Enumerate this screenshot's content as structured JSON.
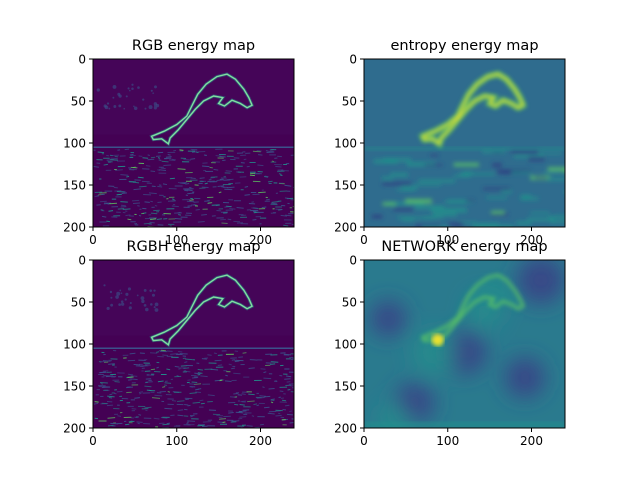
{
  "figure": {
    "background": "#ffffff",
    "colormap": "viridis",
    "colormap_stops": [
      "#440154",
      "#3b528b",
      "#21918c",
      "#5ec962",
      "#fde725"
    ]
  },
  "chart_data": [
    {
      "type": "heatmap",
      "title": "RGB energy map",
      "xticks": [
        "0",
        "100",
        "200"
      ],
      "yticks": [
        "0",
        "50",
        "100",
        "150",
        "200"
      ],
      "xlim": [
        0,
        240
      ],
      "ylim": [
        200,
        0
      ],
      "image_size": [
        240,
        200
      ],
      "style": "edge"
    },
    {
      "type": "heatmap",
      "title": "entropy energy map",
      "xticks": [
        "0",
        "100",
        "200"
      ],
      "yticks": [
        "0",
        "50",
        "100",
        "150",
        "200"
      ],
      "xlim": [
        0,
        240
      ],
      "ylim": [
        200,
        0
      ],
      "image_size": [
        240,
        200
      ],
      "style": "entropy"
    },
    {
      "type": "heatmap",
      "title": "RGBH energy map",
      "xticks": [
        "0",
        "100",
        "200"
      ],
      "yticks": [
        "0",
        "50",
        "100",
        "150",
        "200"
      ],
      "xlim": [
        0,
        240
      ],
      "ylim": [
        200,
        0
      ],
      "image_size": [
        240,
        200
      ],
      "style": "edge"
    },
    {
      "type": "heatmap",
      "title": "NETWORK energy map",
      "xticks": [
        "0",
        "100",
        "200"
      ],
      "yticks": [
        "0",
        "50",
        "100",
        "150",
        "200"
      ],
      "xlim": [
        0,
        240
      ],
      "ylim": [
        200,
        0
      ],
      "image_size": [
        240,
        200
      ],
      "style": "network"
    }
  ]
}
